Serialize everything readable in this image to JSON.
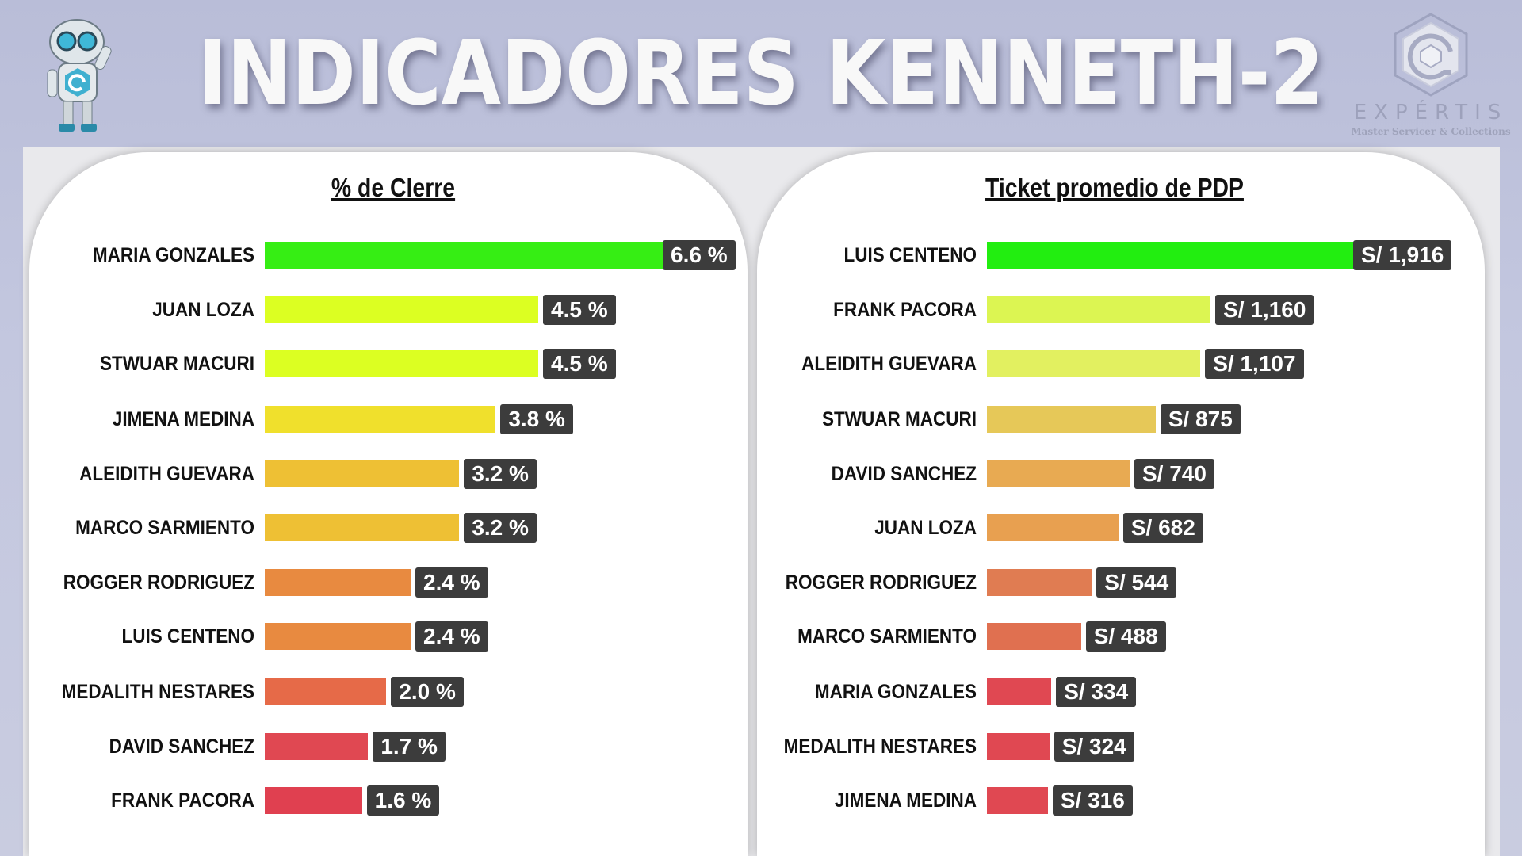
{
  "header": {
    "title": "INDICADORES KENNETH-2"
  },
  "logo": {
    "word": "EXPÉRTIS",
    "subtitle": "Master Servicer & Collections"
  },
  "chart_data": [
    {
      "type": "bar",
      "orientation": "horizontal",
      "title": "% de Clerre",
      "categories": [
        "MARIA GONZALES",
        "JUAN LOZA",
        "STWUAR MACURI",
        "JIMENA MEDINA",
        "ALEIDITH GUEVARA",
        "MARCO SARMIENTO",
        "ROGGER RODRIGUEZ",
        "LUIS CENTENO",
        "MEDALITH NESTARES",
        "DAVID SANCHEZ",
        "FRANK PACORA"
      ],
      "values": [
        6.6,
        4.5,
        4.5,
        3.8,
        3.2,
        3.2,
        2.4,
        2.4,
        2.0,
        1.7,
        1.6
      ],
      "labels": [
        "6.6 %",
        "4.5 %",
        "4.5 %",
        "3.8 %",
        "3.2 %",
        "3.2 %",
        "2.4 %",
        "2.4 %",
        "2.0 %",
        "1.7 %",
        "1.6 %"
      ],
      "colors": [
        "#36ee14",
        "#dcff22",
        "#dcff22",
        "#f0e02c",
        "#eec034",
        "#eec034",
        "#e88a40",
        "#e88a40",
        "#e66a48",
        "#e04852",
        "#e04050"
      ],
      "xlim": [
        0,
        6.6
      ],
      "grid": false
    },
    {
      "type": "bar",
      "orientation": "horizontal",
      "title": "Ticket promedio de PDP",
      "categories": [
        "LUIS CENTENO",
        "FRANK PACORA",
        "ALEIDITH GUEVARA",
        "STWUAR MACURI",
        "DAVID SANCHEZ",
        "JUAN LOZA",
        "ROGGER RODRIGUEZ",
        "MARCO SARMIENTO",
        "MARIA GONZALES",
        "MEDALITH NESTARES",
        "JIMENA MEDINA"
      ],
      "values": [
        1916,
        1160,
        1107,
        875,
        740,
        682,
        544,
        488,
        334,
        324,
        316
      ],
      "labels": [
        "S/ 1,916",
        "S/ 1,160",
        "S/ 1,107",
        "S/ 875",
        "S/ 740",
        "S/ 682",
        "S/ 544",
        "S/ 488",
        "S/ 334",
        "S/ 324",
        "S/ 316"
      ],
      "colors": [
        "#22ee10",
        "#dcf552",
        "#e2f060",
        "#e6c858",
        "#e8aa52",
        "#e8a050",
        "#e07c52",
        "#e07050",
        "#e04852",
        "#e04852",
        "#e04852"
      ],
      "xlim": [
        0,
        1916
      ],
      "grid": false
    }
  ]
}
